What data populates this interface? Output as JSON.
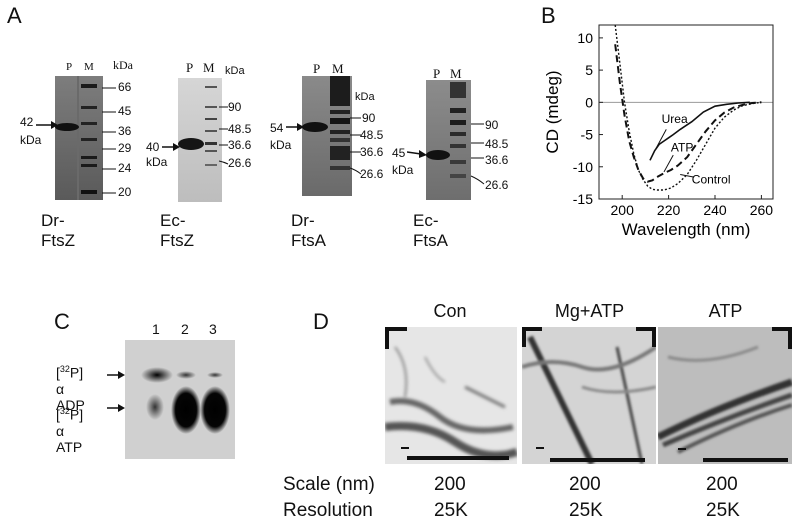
{
  "panels": {
    "A": "A",
    "B": "B",
    "C": "C",
    "D": "D"
  },
  "panelA": {
    "gels": [
      {
        "name": "Dr-FtsZ",
        "lanes": [
          "P",
          "M"
        ],
        "unit": "kDa",
        "markers": [
          "66",
          "45",
          "36",
          "29",
          "24",
          "20"
        ],
        "protein_label": [
          "42",
          "kDa"
        ]
      },
      {
        "name": "Ec-FtsZ",
        "lanes": [
          "P",
          "M"
        ],
        "unit": "kDa",
        "markers": [
          "90",
          "48.5",
          "36.6",
          "26.6"
        ],
        "protein_label": [
          "40",
          "kDa"
        ]
      },
      {
        "name": "Dr-FtsA",
        "lanes": [
          "P",
          "M"
        ],
        "unit": "kDa",
        "markers": [
          "90",
          "48.5",
          "36.6",
          "26.6"
        ],
        "protein_label": [
          "54",
          "kDa"
        ]
      },
      {
        "name": "Ec-FtsA",
        "lanes": [
          "P",
          "M"
        ],
        "unit": "kDa",
        "markers": [
          "90",
          "48.5",
          "36.6",
          "26.6"
        ],
        "protein_label": [
          "45",
          "kDa"
        ]
      }
    ]
  },
  "panelC": {
    "lanes": [
      "1",
      "2",
      "3"
    ],
    "adp_label": [
      "[",
      "32",
      "P]",
      "α ADP"
    ],
    "atp_label": [
      "[",
      "32",
      "P]",
      "α ATP"
    ]
  },
  "panelD": {
    "conditions": [
      "Con",
      "Mg+ATP",
      "ATP"
    ],
    "rows": [
      {
        "label": "Scale (nm)",
        "values": [
          "200",
          "200",
          "200"
        ]
      },
      {
        "label": "Resolution",
        "values": [
          "25K",
          "25K",
          "25K"
        ]
      }
    ]
  },
  "chart_data": {
    "type": "line",
    "xlabel": "Wavelength (nm)",
    "ylabel": "CD (mdeg)",
    "xlim": [
      190,
      265
    ],
    "ylim": [
      -15,
      12
    ],
    "xticks": [
      200,
      220,
      240,
      260
    ],
    "yticks": [
      10,
      5,
      0,
      -5,
      -10,
      -15
    ],
    "series": [
      {
        "name": "Urea",
        "style": "solid",
        "x": [
          212,
          214,
          216,
          218,
          220,
          222,
          225,
          230,
          235,
          240,
          245,
          250,
          255
        ],
        "y": [
          -9,
          -7.5,
          -6.5,
          -6,
          -5.5,
          -5,
          -4.2,
          -3,
          -1.5,
          -0.6,
          -0.3,
          -0.1,
          0
        ]
      },
      {
        "name": "ATP",
        "style": "dashed",
        "x": [
          197,
          199,
          201,
          203,
          205,
          207,
          209,
          211,
          213,
          215,
          218,
          221,
          224,
          228,
          232,
          236,
          240,
          244,
          248,
          252,
          256,
          260
        ],
        "y": [
          9,
          3,
          -2,
          -6,
          -8.5,
          -10.5,
          -11.8,
          -12.3,
          -12.1,
          -11.6,
          -11,
          -10.5,
          -9.8,
          -8.5,
          -6.5,
          -4.5,
          -2.8,
          -1.6,
          -0.8,
          -0.4,
          -0.1,
          0
        ]
      },
      {
        "name": "Control",
        "style": "dotted",
        "x": [
          197,
          199,
          201,
          203,
          205,
          207,
          209,
          211,
          213,
          215,
          218,
          221,
          224,
          228,
          232,
          236,
          240,
          244,
          248,
          252,
          256,
          260
        ],
        "y": [
          12,
          6,
          0,
          -4.5,
          -8,
          -10.5,
          -12,
          -13,
          -13.5,
          -13.6,
          -13.6,
          -13.3,
          -12.6,
          -11.2,
          -9,
          -6.5,
          -4,
          -2.3,
          -1.2,
          -0.5,
          -0.2,
          0
        ]
      }
    ],
    "annotations": [
      "Urea",
      "ATP",
      "Control"
    ]
  }
}
